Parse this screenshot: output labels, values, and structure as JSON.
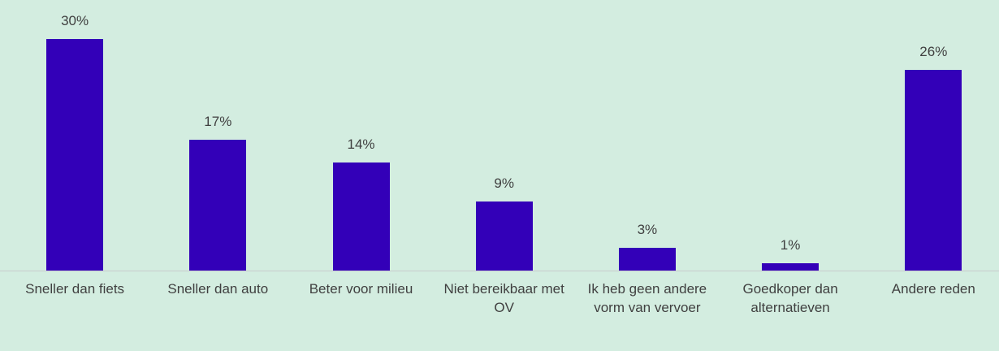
{
  "chart_data": {
    "type": "bar",
    "categories": [
      "Sneller dan fiets",
      "Sneller dan auto",
      "Beter voor milieu",
      "Niet bereikbaar met OV",
      "Ik heb geen andere vorm van vervoer",
      "Goedkoper dan alternatieven",
      "Andere reden"
    ],
    "values": [
      30,
      17,
      14,
      9,
      3,
      1,
      26
    ],
    "value_labels": [
      "30%",
      "17%",
      "14%",
      "9%",
      "3%",
      "1%",
      "26%"
    ],
    "color": "#3300b8"
  }
}
